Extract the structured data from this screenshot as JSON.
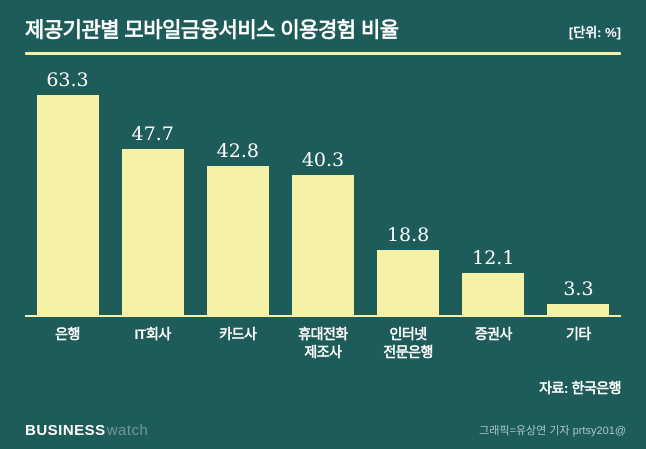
{
  "header": {
    "title": "제공기관별 모바일금융서비스 이용경험 비율",
    "unit": "[단위: %]"
  },
  "chart_data": {
    "type": "bar",
    "title": "제공기관별 모바일금융서비스 이용경험 비율",
    "unit": "[단위: %]",
    "categories": [
      "은행",
      "IT회사",
      "카드사",
      "휴대전화\n제조사",
      "인터넷\n전문은행",
      "증권사",
      "기타"
    ],
    "values": [
      63.3,
      47.7,
      42.8,
      40.3,
      18.8,
      12.1,
      3.3
    ],
    "ylim": [
      0,
      70
    ],
    "xlabel": "",
    "ylabel": "",
    "grid": "off",
    "legend": "none",
    "bar_color": "#f4f0a5",
    "background_color": "#1e5c59",
    "source": "자료: 한국은행"
  },
  "footer": {
    "logo_primary": "BUSINESS",
    "logo_secondary": "watch",
    "credit": "그래픽=유상연 기자 prtsy201@"
  }
}
